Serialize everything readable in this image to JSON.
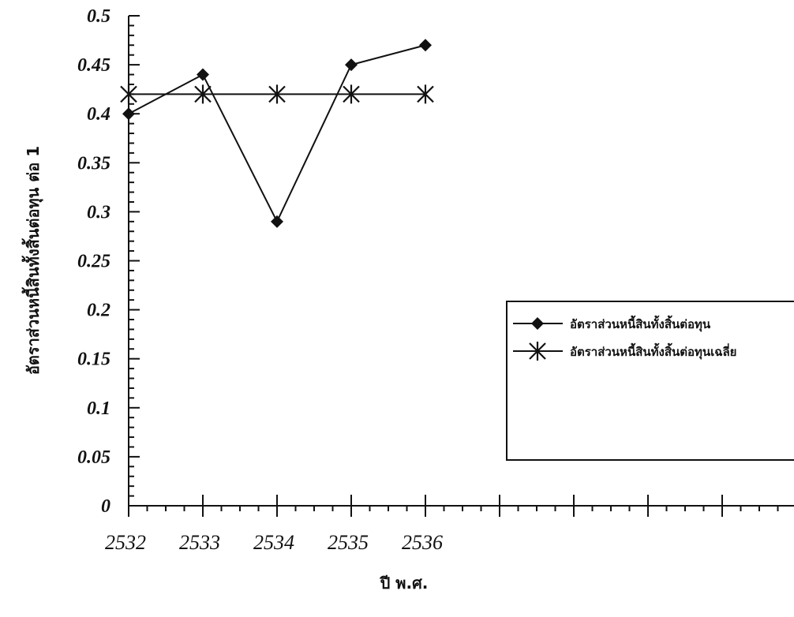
{
  "chart_data": {
    "type": "line",
    "categories": [
      "2532",
      "2533",
      "2534",
      "2535",
      "2536"
    ],
    "series": [
      {
        "name": "อัตราส่วนหนี้สินทั้งสิ้นต่อทุน",
        "values": [
          0.4,
          0.44,
          0.29,
          0.45,
          0.47
        ],
        "marker": "diamond"
      },
      {
        "name": "อัตราส่วนหนี้สินทั้งสิ้นต่อทุนเฉลี่ย",
        "values": [
          0.42,
          0.42,
          0.42,
          0.42,
          0.42
        ],
        "marker": "asterisk"
      }
    ],
    "y_ticks": [
      "0",
      "0.05",
      "0.1",
      "0.15",
      "0.2",
      "0.25",
      "0.3",
      "0.35",
      "0.4",
      "0.45",
      "0.5"
    ],
    "ylim": [
      0,
      0.5
    ],
    "xlabel": "ปี พ.ศ.",
    "ylabel": "อัตราส่วนหนี้สินทั้งสิ้นต่อทุน ต่อ 1",
    "legend_position": "right",
    "grid": false,
    "colors": {
      "line": "#111111",
      "axis": "#111111"
    }
  }
}
